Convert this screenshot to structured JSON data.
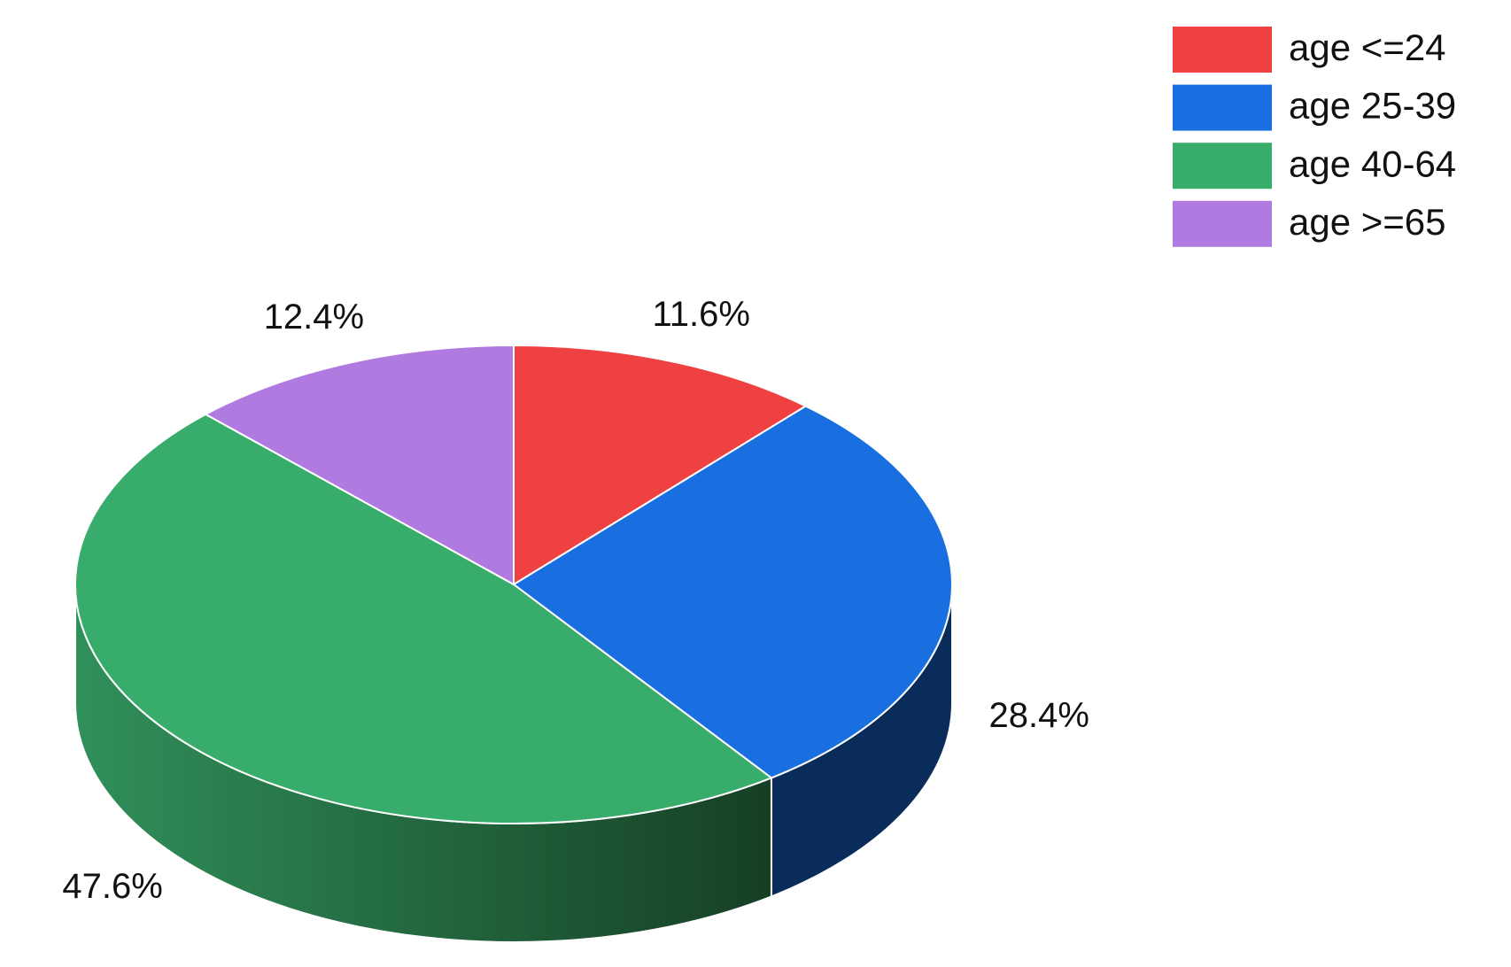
{
  "chart_data": {
    "type": "pie3d",
    "categories": [
      "age <=24",
      "age 25-39",
      "age 40-64",
      "age >=65"
    ],
    "values": [
      11.6,
      28.4,
      47.6,
      12.4
    ],
    "value_labels": [
      "11.6%",
      "28.4%",
      "47.6%",
      "12.4%"
    ],
    "colors": [
      "#ef4141",
      "#1a6fe0",
      "#38ad6b",
      "#b07ae0"
    ],
    "legend": "top-right"
  }
}
